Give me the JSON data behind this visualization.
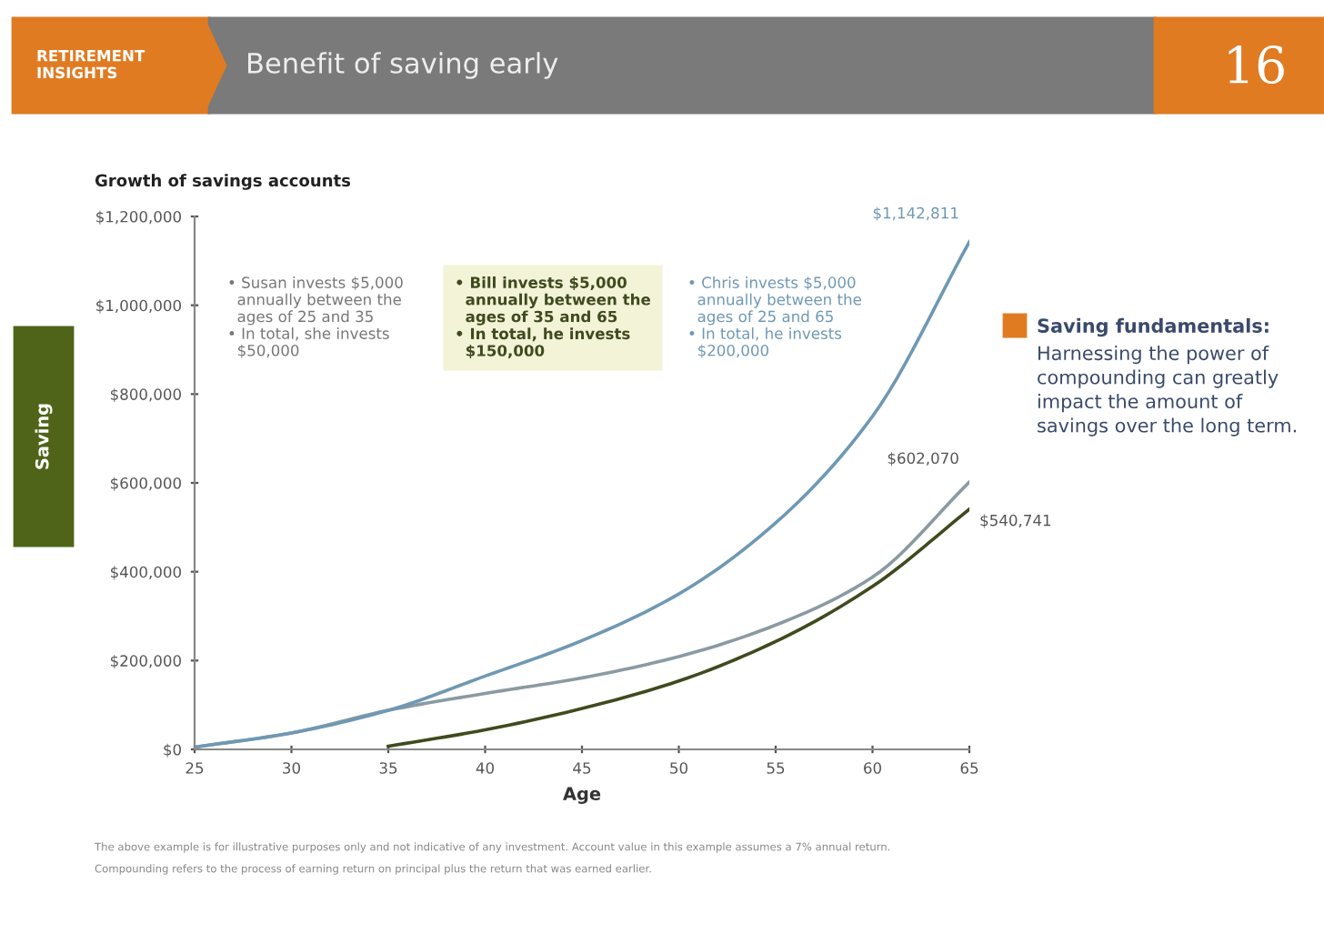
{
  "chart_data": {
    "type": "line",
    "title": "Benefit of saving early",
    "subtitle": "Growth of savings accounts",
    "xlabel": "Age",
    "series": [
      {
        "color": "#8a9aa3",
        "x": [
          25,
          30,
          35,
          40,
          45,
          50,
          55,
          60,
          65
        ],
        "values": [
          5000,
          37000,
          88000,
          126000,
          161000,
          209000,
          280000,
          388000,
          602070
        ],
        "value_labels": [
          null,
          null,
          null,
          null,
          null,
          null,
          null,
          null,
          "$602,070"
        ]
      },
      {
        "color": "#3f4a1e",
        "x": [
          35,
          40,
          45,
          50,
          55,
          60,
          65
        ],
        "values": [
          7000,
          44000,
          92000,
          154000,
          243000,
          367000,
          540741
        ],
        "value_labels": [
          null,
          null,
          null,
          null,
          null,
          null,
          "$540,741"
        ]
      },
      {
        "color": "#6f98b3",
        "x": [
          25,
          30,
          35,
          40,
          45,
          50,
          55,
          60,
          65
        ],
        "values": [
          5000,
          37000,
          88000,
          165000,
          245000,
          350000,
          510000,
          750000,
          1142811
        ],
        "value_labels": [
          null,
          null,
          null,
          null,
          null,
          null,
          null,
          null,
          "$1,142,811"
        ]
      }
    ],
    "xlim": [
      25,
      65
    ],
    "xticks": [
      25,
      30,
      35,
      40,
      45,
      50,
      55,
      60,
      65
    ],
    "ylim": [
      0,
      1200000
    ],
    "yticks": [
      {
        "value": 0,
        "label": "$0"
      },
      {
        "value": 200000,
        "label": "$200,000"
      },
      {
        "value": 400000,
        "label": "$400,000"
      },
      {
        "value": 600000,
        "label": "$600,000"
      },
      {
        "value": 800000,
        "label": "$800,000"
      },
      {
        "value": 1000000,
        "label": "$1,000,000"
      },
      {
        "value": 1200000,
        "label": "$1,200,000"
      }
    ],
    "grid": false,
    "legend": false,
    "line_style": "solid",
    "annotations": [
      "RETIREMENT\nINSIGHTS",
      "16",
      "Saving",
      "• Susan invests $5,000\n  annually between the\n  ages of 25 and 35\n• In total, she invests\n  $50,000",
      "• Bill invests $5,000\n  annually between the\n  ages of 35 and 65\n• In total, he invests\n  $150,000",
      "• Chris invests $5,000\n  annually between the\n  ages of 25 and 65\n• In total, he invests\n  $200,000",
      "Saving fundamentals:",
      "Harnessing the power of\ncompounding can greatly\nimpact the amount of\nsavings over the long term.",
      "The above example is for illustrative purposes only and not indicative of any investment. Account value in this example assumes a 7% annual return.",
      "Compounding refers to the process of earning return on principal plus the return that was earned earlier."
    ]
  }
}
